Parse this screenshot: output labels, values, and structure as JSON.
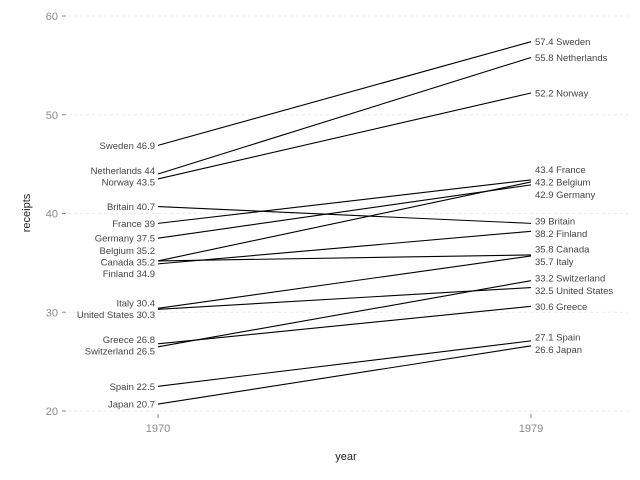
{
  "chart_data": {
    "type": "line",
    "title": "",
    "xlabel": "year",
    "ylabel": "receipts",
    "x_ticks": [
      "1970",
      "1979"
    ],
    "y_ticks": [
      "20",
      "30",
      "40",
      "50",
      "60"
    ],
    "ylim": [
      20,
      60
    ],
    "grid": true,
    "legend": "none",
    "series": [
      {
        "name": "Sweden",
        "values": [
          46.9,
          57.4
        ]
      },
      {
        "name": "Netherlands",
        "values": [
          44,
          55.8
        ]
      },
      {
        "name": "Norway",
        "values": [
          43.5,
          52.2
        ]
      },
      {
        "name": "Britain",
        "values": [
          40.7,
          39
        ]
      },
      {
        "name": "France",
        "values": [
          39,
          43.4
        ]
      },
      {
        "name": "Germany",
        "values": [
          37.5,
          42.9
        ]
      },
      {
        "name": "Belgium",
        "values": [
          35.2,
          43.2
        ]
      },
      {
        "name": "Canada",
        "values": [
          35.2,
          35.8
        ]
      },
      {
        "name": "Finland",
        "values": [
          34.9,
          38.2
        ]
      },
      {
        "name": "Italy",
        "values": [
          30.4,
          35.7
        ]
      },
      {
        "name": "United States",
        "values": [
          30.3,
          32.5
        ]
      },
      {
        "name": "Greece",
        "values": [
          26.8,
          30.6
        ]
      },
      {
        "name": "Switzerland",
        "values": [
          26.5,
          33.2
        ]
      },
      {
        "name": "Spain",
        "values": [
          22.5,
          27.1
        ]
      },
      {
        "name": "Japan",
        "values": [
          20.7,
          26.6
        ]
      }
    ],
    "left_labels": [
      "Sweden 46.9",
      "Netherlands 44",
      "Norway 43.5",
      "Britain 40.7",
      "France 39",
      "Germany 37.5",
      "Belgium 35.2",
      "Canada 35.2",
      "Finland 34.9",
      "Italy 30.4",
      "United States 30.3",
      "Greece 26.8",
      "Switzerland 26.5",
      "Spain 22.5",
      "Japan 20.7"
    ],
    "right_labels": [
      "57.4 Sweden",
      "55.8 Netherlands",
      "52.2 Norway",
      "39 Britain",
      "43.4 France",
      "42.9 Germany",
      "43.2 Belgium",
      "35.8 Canada",
      "38.2 Finland",
      "35.7 Italy",
      "32.5 United States",
      "30.6 Greece",
      "33.2 Switzerland",
      "27.1 Spain",
      "26.6 Japan"
    ]
  }
}
